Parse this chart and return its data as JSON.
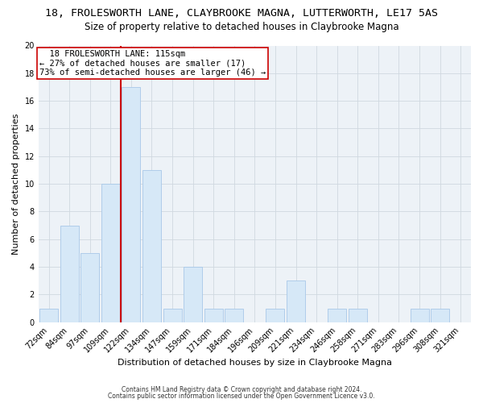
{
  "title_line1": "18, FROLESWORTH LANE, CLAYBROOKE MAGNA, LUTTERWORTH, LE17 5AS",
  "title_line2": "Size of property relative to detached houses in Claybrooke Magna",
  "xlabel": "Distribution of detached houses by size in Claybrooke Magna",
  "ylabel": "Number of detached properties",
  "footer_line1": "Contains HM Land Registry data © Crown copyright and database right 2024.",
  "footer_line2": "Contains public sector information licensed under the Open Government Licence v3.0.",
  "bin_labels": [
    "72sqm",
    "84sqm",
    "97sqm",
    "109sqm",
    "122sqm",
    "134sqm",
    "147sqm",
    "159sqm",
    "171sqm",
    "184sqm",
    "196sqm",
    "209sqm",
    "221sqm",
    "234sqm",
    "246sqm",
    "258sqm",
    "271sqm",
    "283sqm",
    "296sqm",
    "308sqm",
    "321sqm"
  ],
  "bar_heights": [
    1,
    7,
    5,
    10,
    17,
    11,
    1,
    4,
    1,
    1,
    0,
    1,
    3,
    0,
    1,
    1,
    0,
    0,
    1,
    1,
    0
  ],
  "bar_color": "#d6e8f7",
  "bar_edge_color": "#a8c8e8",
  "vline_x_index": 3.5,
  "vline_color": "#cc0000",
  "annotation_text": "  18 FROLESWORTH LANE: 115sqm\n← 27% of detached houses are smaller (17)\n73% of semi-detached houses are larger (46) →",
  "annotation_box_color": "white",
  "annotation_box_edge_color": "#cc0000",
  "ylim": [
    0,
    20
  ],
  "yticks": [
    0,
    2,
    4,
    6,
    8,
    10,
    12,
    14,
    16,
    18,
    20
  ],
  "grid_color": "#d0d8e0",
  "background_color": "#ffffff",
  "plot_bg_color": "#edf2f7",
  "title_fontsize": 9.5,
  "subtitle_fontsize": 8.5,
  "axis_label_fontsize": 8,
  "tick_fontsize": 7,
  "annotation_fontsize": 7.5
}
